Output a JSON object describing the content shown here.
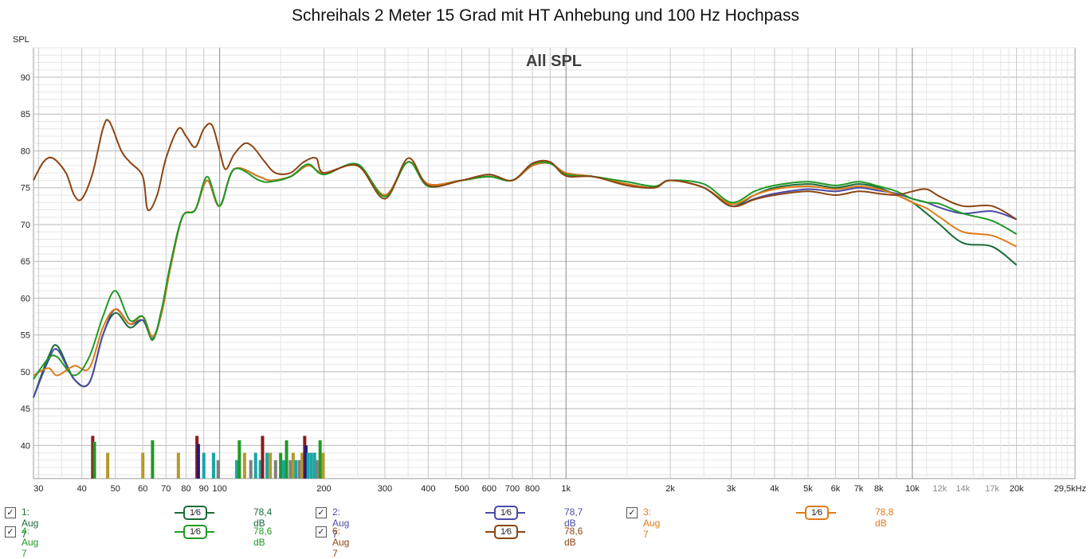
{
  "title": "Schreihals 2 Meter 15 Grad mit HT Anhebung und 100 Hz Hochpass",
  "chart_data": {
    "type": "line",
    "title": "Schreihals 2 Meter 15 Grad mit HT Anhebung und 100 Hz Hochpass",
    "overlay_label": "All SPL",
    "ylabel": "SPL",
    "x_scale": "log",
    "xlim": [
      29,
      29500
    ],
    "ylim": [
      35.5,
      94
    ],
    "grid": true,
    "y_ticks": [
      "40",
      "45",
      "50",
      "55",
      "60",
      "65",
      "70",
      "75",
      "80",
      "85",
      "90"
    ],
    "x_ticks": [
      {
        "v": 30,
        "t": "30"
      },
      {
        "v": 40,
        "t": "40"
      },
      {
        "v": 50,
        "t": "50"
      },
      {
        "v": 60,
        "t": "60"
      },
      {
        "v": 70,
        "t": "70"
      },
      {
        "v": 80,
        "t": "80"
      },
      {
        "v": 90,
        "t": "90"
      },
      {
        "v": 100,
        "t": "100"
      },
      {
        "v": 200,
        "t": "200"
      },
      {
        "v": 300,
        "t": "300"
      },
      {
        "v": 400,
        "t": "400"
      },
      {
        "v": 500,
        "t": "500"
      },
      {
        "v": 600,
        "t": "600"
      },
      {
        "v": 700,
        "t": "700"
      },
      {
        "v": 800,
        "t": "800"
      },
      {
        "v": 1000,
        "t": "1k"
      },
      {
        "v": 2000,
        "t": "2k"
      },
      {
        "v": 3000,
        "t": "3k"
      },
      {
        "v": 4000,
        "t": "4k"
      },
      {
        "v": 5000,
        "t": "5k"
      },
      {
        "v": 6000,
        "t": "6k"
      },
      {
        "v": 7000,
        "t": "7k"
      },
      {
        "v": 8000,
        "t": "8k"
      },
      {
        "v": 10000,
        "t": "10k"
      },
      {
        "v": 12000,
        "t": "12k",
        "minor": true
      },
      {
        "v": 14000,
        "t": "14k",
        "minor": true
      },
      {
        "v": 17000,
        "t": "17k",
        "minor": true
      },
      {
        "v": 20000,
        "t": "20k"
      },
      {
        "v": 29500,
        "t": "29,5kHz"
      }
    ],
    "series": [
      {
        "name": "1: Aug 7",
        "color": "#1a6b38",
        "x": [
          29,
          32,
          34,
          38,
          42,
          46,
          50,
          55,
          60,
          64,
          68,
          72,
          78,
          85,
          92,
          100,
          110,
          130,
          140,
          160,
          180,
          200,
          250,
          300,
          350,
          400,
          500,
          600,
          700,
          800,
          900,
          1000,
          1200,
          1500,
          1800,
          2000,
          2500,
          3000,
          3500,
          4000,
          5000,
          6000,
          7000,
          8000,
          9000,
          10000,
          11000,
          12000,
          14000,
          17000,
          20000
        ],
        "y": [
          46.5,
          52,
          53.5,
          49,
          48.5,
          55,
          58,
          56,
          57,
          54.5,
          58,
          64,
          71,
          72,
          76,
          72.5,
          77.5,
          76.5,
          76,
          76.5,
          78,
          77,
          78,
          74,
          78.5,
          75.5,
          76,
          76.5,
          76,
          78,
          78.3,
          77,
          76.5,
          75.5,
          75,
          76,
          75,
          72.5,
          74,
          75,
          75.5,
          75,
          75.5,
          75,
          74,
          73,
          71.5,
          70,
          67.5,
          67,
          64.5
        ]
      },
      {
        "name": "2: Aug 7",
        "color": "#4a4aa8",
        "x": [
          29,
          32,
          34,
          38,
          42,
          46,
          50,
          55,
          60,
          64,
          68,
          72,
          78,
          85,
          92,
          100,
          110,
          130,
          140,
          160,
          180,
          200,
          250,
          300,
          350,
          400,
          500,
          600,
          700,
          800,
          900,
          1000,
          1200,
          1500,
          1800,
          2000,
          2500,
          3000,
          3500,
          4000,
          5000,
          6000,
          7000,
          8000,
          9000,
          10000,
          11000,
          12000,
          14000,
          17000,
          20000
        ],
        "y": [
          46.5,
          51.5,
          53,
          49,
          48.5,
          55,
          58.5,
          56.5,
          57,
          54.5,
          58,
          64,
          71,
          72,
          76,
          72.5,
          77.5,
          76.5,
          76,
          76.5,
          78,
          77,
          78,
          74,
          78.5,
          75.5,
          76,
          76.5,
          76,
          78,
          78.3,
          77,
          76.5,
          75.5,
          75,
          76,
          75,
          72.5,
          73.5,
          74.2,
          74.8,
          74.5,
          75,
          74.6,
          74.2,
          73.5,
          73,
          72.3,
          71.5,
          71.8,
          70.7
        ]
      },
      {
        "name": "3: Aug 7",
        "color": "#e07b18",
        "x": [
          29,
          32,
          34,
          38,
          42,
          46,
          50,
          55,
          60,
          64,
          68,
          72,
          78,
          85,
          92,
          100,
          110,
          130,
          140,
          160,
          180,
          200,
          250,
          300,
          350,
          400,
          500,
          600,
          700,
          800,
          900,
          1000,
          1200,
          1500,
          1800,
          2000,
          2500,
          3000,
          3500,
          4000,
          5000,
          6000,
          7000,
          8000,
          9000,
          10000,
          11000,
          12000,
          14000,
          17000,
          20000
        ],
        "y": [
          49.5,
          50.5,
          49.5,
          50.8,
          50.5,
          56,
          58.5,
          56.5,
          57.5,
          54.8,
          58,
          64,
          71,
          72,
          76,
          72.5,
          77.5,
          76.5,
          76,
          76.5,
          78,
          77,
          78,
          74,
          78.5,
          75.5,
          76,
          76.5,
          76,
          78,
          78.3,
          77,
          76.5,
          75.5,
          75,
          76,
          75,
          72.8,
          74,
          74.8,
          75.2,
          74.8,
          75.2,
          74.8,
          74,
          73,
          72.2,
          71,
          69,
          68.5,
          67
        ]
      },
      {
        "name": "4: Aug 7",
        "color": "#1f9a25",
        "x": [
          29,
          32,
          34,
          38,
          42,
          46,
          50,
          55,
          60,
          64,
          68,
          72,
          78,
          85,
          92,
          100,
          110,
          130,
          140,
          160,
          180,
          200,
          250,
          300,
          350,
          400,
          500,
          600,
          700,
          800,
          900,
          1000,
          1200,
          1500,
          1800,
          2000,
          2500,
          3000,
          3500,
          4000,
          5000,
          6000,
          7000,
          8000,
          9000,
          10000,
          11000,
          12000,
          14000,
          17000,
          20000
        ],
        "y": [
          49,
          51.8,
          52,
          49.5,
          52,
          57.5,
          61,
          57,
          57.5,
          54.3,
          58.5,
          64.5,
          71,
          72,
          76.5,
          72.5,
          77.5,
          76,
          75.8,
          76.5,
          78.2,
          76.8,
          78.2,
          73.8,
          78.5,
          75.2,
          76,
          76.5,
          76,
          78.2,
          78.3,
          76.8,
          76.5,
          75.8,
          75.2,
          76,
          75.5,
          73,
          74.5,
          75.3,
          75.8,
          75.3,
          75.8,
          75.2,
          74.5,
          73.5,
          73,
          72.8,
          71.5,
          70.5,
          68.7
        ]
      },
      {
        "name": "6: Aug 7",
        "color": "#8b4513",
        "x": [
          29,
          31,
          33,
          36,
          38,
          40,
          43,
          46,
          48,
          52,
          55,
          60,
          62,
          66,
          70,
          76,
          80,
          85,
          90,
          95,
          100,
          104,
          110,
          118,
          125,
          135,
          145,
          160,
          175,
          190,
          200,
          250,
          300,
          350,
          400,
          500,
          600,
          700,
          800,
          900,
          1000,
          1200,
          1500,
          1800,
          2000,
          2500,
          3000,
          3500,
          4000,
          5000,
          6000,
          7000,
          8000,
          9000,
          10000,
          11000,
          12000,
          14000,
          17000,
          20000
        ],
        "y": [
          76,
          78.5,
          79,
          77,
          74,
          73.5,
          77,
          83,
          84,
          80,
          78.5,
          76.5,
          72,
          74,
          79,
          83,
          82,
          80.5,
          83,
          83.5,
          80,
          77.5,
          79.5,
          81,
          80.5,
          78.5,
          77,
          77,
          78.5,
          79,
          77,
          78,
          73.5,
          79,
          75.3,
          76,
          76.8,
          76,
          78.3,
          78.5,
          76.6,
          76.5,
          75.3,
          75,
          76,
          75,
          72.5,
          73.4,
          74,
          74.5,
          74,
          74.5,
          74.2,
          74,
          74.5,
          74.8,
          73.8,
          72.5,
          72.5,
          70.7
        ]
      }
    ],
    "bars": [
      {
        "x": 43,
        "y": 41.3,
        "color": "#8b1a1a"
      },
      {
        "x": 43.5,
        "y": 40.5,
        "color": "#1f9a25"
      },
      {
        "x": 47.5,
        "y": 39,
        "color": "#b59a2b"
      },
      {
        "x": 60,
        "y": 39,
        "color": "#b59a2b"
      },
      {
        "x": 64,
        "y": 40.7,
        "color": "#1f9a25"
      },
      {
        "x": 76,
        "y": 39,
        "color": "#b59a2b"
      },
      {
        "x": 86,
        "y": 41.3,
        "color": "#8b1a1a"
      },
      {
        "x": 86.8,
        "y": 40.2,
        "color": "#1a1a8b"
      },
      {
        "x": 90,
        "y": 39,
        "color": "#1aa6a6"
      },
      {
        "x": 96,
        "y": 39,
        "color": "#1aa6a6"
      },
      {
        "x": 99,
        "y": 38,
        "color": "#808080"
      },
      {
        "x": 112,
        "y": 38,
        "color": "#1aa6a6"
      },
      {
        "x": 114,
        "y": 40.7,
        "color": "#1f9a25"
      },
      {
        "x": 118,
        "y": 39,
        "color": "#b59a2b"
      },
      {
        "x": 123,
        "y": 38,
        "color": "#808080"
      },
      {
        "x": 127,
        "y": 39,
        "color": "#1aa6a6"
      },
      {
        "x": 131,
        "y": 38,
        "color": "#1aa6a6"
      },
      {
        "x": 133,
        "y": 41.3,
        "color": "#8b1a1a"
      },
      {
        "x": 137,
        "y": 39,
        "color": "#1aa6a6"
      },
      {
        "x": 140,
        "y": 39,
        "color": "#b59a2b"
      },
      {
        "x": 145,
        "y": 38,
        "color": "#808080"
      },
      {
        "x": 150,
        "y": 39,
        "color": "#1f9a25"
      },
      {
        "x": 153,
        "y": 38,
        "color": "#1aa6a6"
      },
      {
        "x": 156,
        "y": 40.7,
        "color": "#1f9a25"
      },
      {
        "x": 160,
        "y": 38,
        "color": "#808080"
      },
      {
        "x": 163,
        "y": 39,
        "color": "#b59a2b"
      },
      {
        "x": 166,
        "y": 38,
        "color": "#1aa6a6"
      },
      {
        "x": 170,
        "y": 38,
        "color": "#808080"
      },
      {
        "x": 173,
        "y": 39,
        "color": "#b59a2b"
      },
      {
        "x": 176,
        "y": 41.3,
        "color": "#8b1a1a"
      },
      {
        "x": 177.5,
        "y": 40,
        "color": "#1a1a8b"
      },
      {
        "x": 180,
        "y": 39,
        "color": "#1aa6a6"
      },
      {
        "x": 184,
        "y": 39,
        "color": "#1aa6a6"
      },
      {
        "x": 188,
        "y": 39,
        "color": "#1aa6a6"
      },
      {
        "x": 191,
        "y": 38,
        "color": "#808080"
      },
      {
        "x": 195,
        "y": 40.7,
        "color": "#1f9a25"
      },
      {
        "x": 199,
        "y": 39,
        "color": "#b59a2b"
      }
    ]
  },
  "legend": [
    {
      "label": "1: Aug 7",
      "smoothing": "1⁄6",
      "value": "78,4 dB",
      "color": "#1a6b38"
    },
    {
      "label": "2: Aug 7",
      "smoothing": "1⁄6",
      "value": "78,7 dB",
      "color": "#4a4aa8"
    },
    {
      "label": "3: Aug 7",
      "smoothing": "1⁄6",
      "value": "78,8 dB",
      "color": "#e07b18"
    },
    {
      "label": "4: Aug 7",
      "smoothing": "1⁄6",
      "value": "78,6 dB",
      "color": "#1f9a25"
    },
    {
      "label": "6: Aug 7",
      "smoothing": "1⁄6",
      "value": "78,6 dB",
      "color": "#8b4513"
    }
  ],
  "checkbox_mark": "✓"
}
